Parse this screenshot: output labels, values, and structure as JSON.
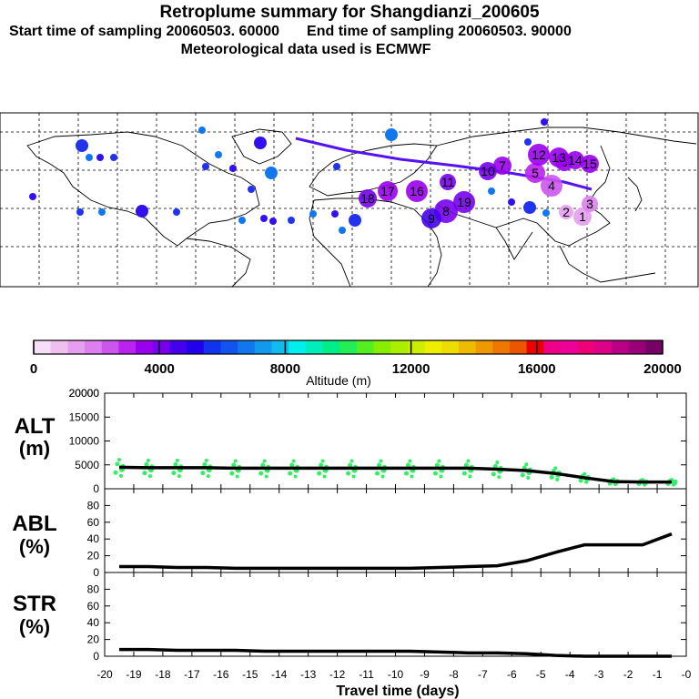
{
  "header": {
    "title": "Retroplume summary for Shangdianzi_200605",
    "start_label": "Start time of sampling 20060503. 60000",
    "end_label": "End time of sampling 20060503. 90000",
    "met_label": "Meteorological data used is ECMWF"
  },
  "colorbar": {
    "colors": [
      "#f7dff7",
      "#efbfef",
      "#e69fef",
      "#dd7fef",
      "#cc55ee",
      "#bb22ee",
      "#9900ee",
      "#7700ee",
      "#4400ee",
      "#2200ee",
      "#1133ee",
      "#1155ee",
      "#1177ee",
      "#1199ee",
      "#11bbee",
      "#00eeee",
      "#00eebb",
      "#00ee88",
      "#22ee55",
      "#55ee22",
      "#88ee00",
      "#aaee00",
      "#ccee00",
      "#eeee00",
      "#eedd00",
      "#eebb00",
      "#ee9900",
      "#ee7700",
      "#ee5500",
      "#ee0000",
      "#ee0088",
      "#ee0099",
      "#ee0077",
      "#dd0088",
      "#bb0088",
      "#990077",
      "#770066"
    ],
    "tick_labels": [
      "0",
      "4000",
      "8000",
      "12000",
      "16000",
      "20000"
    ],
    "label": "Altitude (m)"
  },
  "map": {
    "plume_points": [
      {
        "label": "1",
        "alt": 1200
      },
      {
        "label": "2",
        "alt": 1500
      },
      {
        "label": "3",
        "alt": 2000
      },
      {
        "label": "4",
        "alt": 2500
      },
      {
        "label": "5",
        "alt": 3000
      },
      {
        "label": "6",
        "alt": 3300
      },
      {
        "label": "7",
        "alt": 3500
      },
      {
        "label": "8",
        "alt": 4200
      },
      {
        "label": "9",
        "alt": 4500
      },
      {
        "label": "10",
        "alt": 3900
      },
      {
        "label": "11",
        "alt": 3800
      },
      {
        "label": "12",
        "alt": 3600
      },
      {
        "label": "13",
        "alt": 3700
      },
      {
        "label": "14",
        "alt": 3500
      },
      {
        "label": "15",
        "alt": 3300
      },
      {
        "label": "16",
        "alt": 3400
      },
      {
        "label": "17",
        "alt": 3600
      },
      {
        "label": "18",
        "alt": 3800
      },
      {
        "label": "19",
        "alt": 4300
      }
    ]
  },
  "chart_data": [
    {
      "type": "line",
      "panel": "ALT",
      "ylabel": "ALT (m)",
      "ylim": [
        0,
        20000
      ],
      "yticks": [
        "0",
        "5000",
        "10000",
        "15000",
        "20000"
      ],
      "x": [
        -19.5,
        -18.5,
        -17.5,
        -16.5,
        -15.5,
        -14.5,
        -13.5,
        -12.5,
        -11.5,
        -10.5,
        -9.5,
        -8.5,
        -7.5,
        -6.5,
        -5.5,
        -4.5,
        -3.5,
        -2.5,
        -1.5,
        -0.5
      ],
      "values": [
        4500,
        4400,
        4400,
        4400,
        4300,
        4300,
        4300,
        4300,
        4300,
        4300,
        4300,
        4300,
        4300,
        4100,
        3800,
        3200,
        2300,
        1500,
        1400,
        1400
      ],
      "scatter_color": "#33ee66"
    },
    {
      "type": "line",
      "panel": "ABL",
      "ylabel": "ABL (%)",
      "ylim": [
        0,
        100
      ],
      "yticks": [
        "0",
        "20",
        "40",
        "60",
        "80"
      ],
      "x": [
        -19.5,
        -18.5,
        -17.5,
        -16.5,
        -15.5,
        -14.5,
        -13.5,
        -12.5,
        -11.5,
        -10.5,
        -9.5,
        -8.5,
        -7.5,
        -6.5,
        -5.5,
        -4.5,
        -3.5,
        -2.5,
        -1.5,
        -0.5
      ],
      "values": [
        7,
        7,
        6,
        6,
        5,
        5,
        5,
        5,
        5,
        5,
        5,
        6,
        7,
        8,
        14,
        24,
        33,
        33,
        33,
        46
      ]
    },
    {
      "type": "line",
      "panel": "STR",
      "ylabel": "STR (%)",
      "ylim": [
        0,
        100
      ],
      "yticks": [
        "0",
        "20",
        "40",
        "60",
        "80"
      ],
      "x": [
        -19.5,
        -18.5,
        -17.5,
        -16.5,
        -15.5,
        -14.5,
        -13.5,
        -12.5,
        -11.5,
        -10.5,
        -9.5,
        -8.5,
        -7.5,
        -6.5,
        -5.5,
        -4.5,
        -3.5,
        -2.5,
        -1.5,
        -0.5
      ],
      "values": [
        8,
        8,
        7,
        7,
        7,
        6,
        6,
        6,
        6,
        6,
        6,
        5,
        4,
        4,
        3,
        1,
        0,
        0,
        0,
        0
      ],
      "xlabel": "Travel time (days)",
      "xticks": [
        "-20",
        "-19",
        "-18",
        "-17",
        "-16",
        "-15",
        "-14",
        "-13",
        "-12",
        "-11",
        "-10",
        "-9",
        "-8",
        "-7",
        "-6",
        "-5",
        "-4",
        "-3",
        "-2",
        "-1",
        "-0"
      ]
    }
  ],
  "panels": {
    "alt_title_1": "ALT",
    "alt_title_2": "(m)",
    "abl_title_1": "ABL",
    "abl_title_2": "(%)",
    "str_title_1": "STR",
    "str_title_2": "(%)"
  }
}
